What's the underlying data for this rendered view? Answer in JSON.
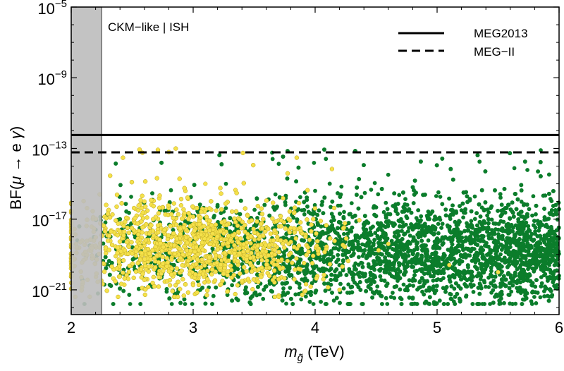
{
  "chart_data": {
    "type": "scatter",
    "title": "",
    "annotation": "CKM−like | ISH",
    "xlabel": "m_g̃ (TeV)",
    "xlabel_parts": {
      "base": "m",
      "subscript": "g̃",
      "rest": " (TeV)"
    },
    "ylabel": "BF(μ → e γ)",
    "ylabel_parts": {
      "pre": "BF(",
      "mu": "μ",
      "mid": " → e ",
      "gamma": "γ",
      "post": ")"
    },
    "xlim": [
      2,
      6
    ],
    "ylim_log10": [
      -22.4,
      -5
    ],
    "x_ticks": [
      2,
      3,
      4,
      5,
      6
    ],
    "x_tick_labels": [
      "2",
      "3",
      "4",
      "5",
      "6"
    ],
    "y_ticks_log10": [
      -21,
      -17,
      -13,
      -9,
      -5
    ],
    "y_tick_labels": [
      {
        "base": "10",
        "exp": "−21"
      },
      {
        "base": "10",
        "exp": "−17"
      },
      {
        "base": "10",
        "exp": "−13"
      },
      {
        "base": "10",
        "exp": "−9"
      },
      {
        "base": "10",
        "exp": "−5"
      }
    ],
    "excluded_region": {
      "x": [
        2,
        2.25
      ],
      "color": "#bdbdbd"
    },
    "reference_lines": [
      {
        "name": "MEG2013",
        "value": 5.7e-13,
        "log10": -12.24,
        "style": "solid"
      },
      {
        "name": "MEG−II",
        "value": 6e-14,
        "log10": -13.22,
        "style": "dashed"
      }
    ],
    "legend": {
      "position": "top-right",
      "entries": [
        "MEG2013",
        "MEG−II"
      ]
    },
    "series": [
      {
        "name": "green points",
        "color": "#0b7d2b",
        "x_range": [
          2,
          6
        ],
        "log10_core_range": [
          -21.3,
          -16.3
        ],
        "log10_full_range": [
          -21.8,
          -13.0
        ],
        "density": "increasing toward x = 6",
        "sample_points": [
          [
            2.05,
            -18.2
          ],
          [
            2.4,
            -17.0
          ],
          [
            2.8,
            -19.5
          ],
          [
            3.2,
            -16.2
          ],
          [
            3.6,
            -20.8
          ],
          [
            4.0,
            -15.4
          ],
          [
            4.4,
            -18.0
          ],
          [
            4.8,
            -21.5
          ],
          [
            5.2,
            -16.5
          ],
          [
            5.6,
            -19.0
          ],
          [
            5.85,
            -13.1
          ],
          [
            6.0,
            -20.2
          ]
        ]
      },
      {
        "name": "yellow points",
        "color": "#f5e14a",
        "x_range": [
          2,
          5.7
        ],
        "log10_core_range": [
          -20.8,
          -16.2
        ],
        "log10_full_range": [
          -21.4,
          -13.0
        ],
        "peak_x": 3.0,
        "density": "concentrated around x = 2.5 to 3.5",
        "sample_points": [
          [
            2.2,
            -18.5
          ],
          [
            2.6,
            -16.0
          ],
          [
            2.8,
            -13.2
          ],
          [
            3.0,
            -19.2
          ],
          [
            3.1,
            -15.0
          ],
          [
            3.4,
            -20.5
          ],
          [
            3.8,
            -17.5
          ],
          [
            4.2,
            -21.0
          ],
          [
            4.6,
            -18.4
          ],
          [
            5.1,
            -19.6
          ],
          [
            5.5,
            -20.0
          ]
        ]
      }
    ]
  }
}
